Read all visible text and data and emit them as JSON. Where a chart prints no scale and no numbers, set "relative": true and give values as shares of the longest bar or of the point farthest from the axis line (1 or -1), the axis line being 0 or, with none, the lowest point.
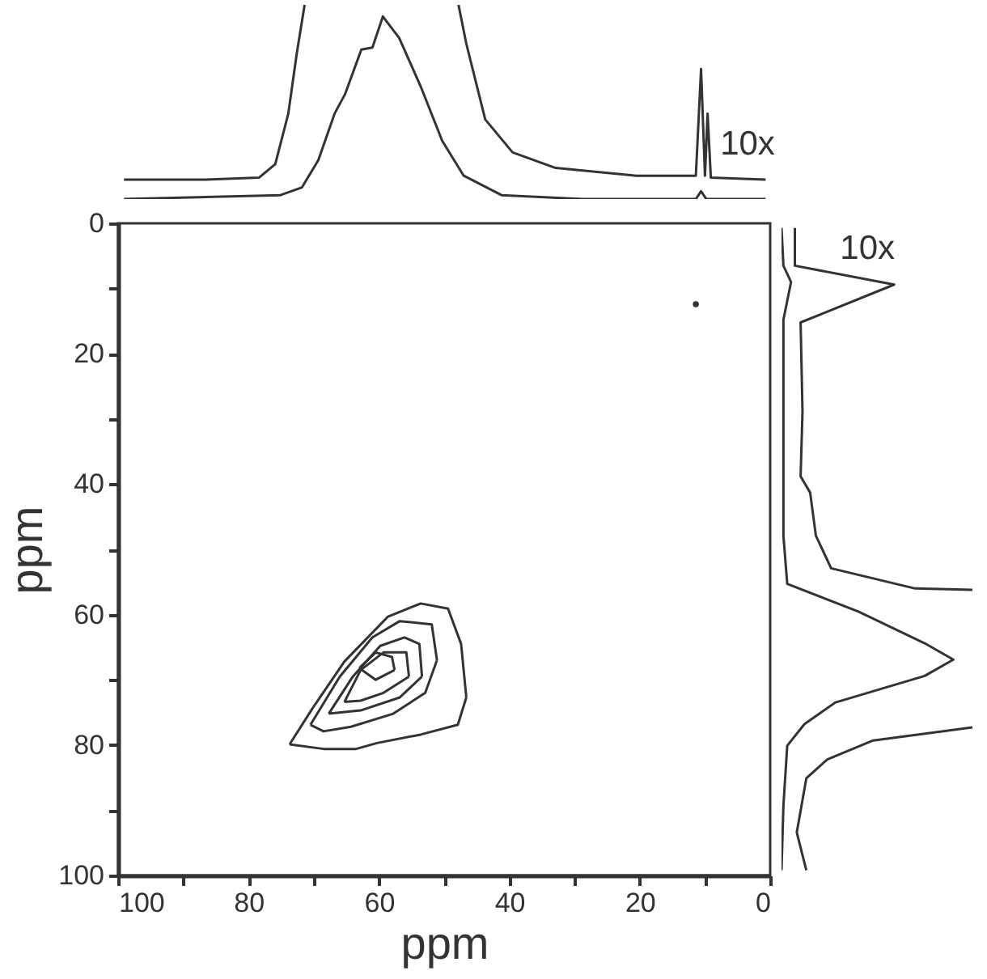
{
  "chart_data": [
    {
      "type": "line",
      "relative": true,
      "xlim": [
        100,
        0
      ],
      "tick_labels": false,
      "annotations": [
        "10x"
      ],
      "series": [
        {
          "color": "#333333",
          "x": [
            99.1,
            86.7,
            78.4,
            75.9,
            73.9,
            72.6,
            71.4,
            60,
            47.8,
            46.6,
            43.7,
            39.5,
            32.9,
            20.5,
            11.4,
            10.6,
            10.0,
            9.6,
            9.1,
            0.7
          ],
          "values": [
            0.1,
            0.1,
            0.11,
            0.18,
            0.44,
            0.75,
            1.0,
            null,
            1.0,
            0.8,
            0.41,
            0.24,
            0.16,
            0.12,
            0.12,
            0.67,
            0.12,
            0.44,
            0.11,
            0.1
          ]
        },
        {
          "color": "#333333",
          "x": [
            99.1,
            75.1,
            71.8,
            69.3,
            66.8,
            65.2,
            62.7,
            61.0,
            59.4,
            56.9,
            53.6,
            50.3,
            47.0,
            41.2,
            28.8,
            11.4,
            10.6,
            9.8,
            0.7
          ],
          "values": [
            0,
            0.02,
            0.06,
            0.2,
            0.44,
            0.54,
            0.77,
            0.78,
            0.94,
            0.83,
            0.58,
            0.3,
            0.12,
            0.02,
            0,
            0,
            0.04,
            0,
            0
          ]
        }
      ]
    },
    {
      "type": "line",
      "xlabel": "ppm",
      "ylabel": "ppm",
      "xlim": [
        100,
        0
      ],
      "ylim": [
        100,
        0
      ],
      "xticks": [
        100,
        {
          "value": 90,
          "label": null
        },
        80,
        {
          "value": 70,
          "label": null
        },
        60,
        {
          "value": 50,
          "label": null
        },
        40,
        {
          "value": 30,
          "label": null
        },
        20,
        {
          "value": 10,
          "label": null
        },
        0
      ],
      "yticks": [
        0,
        {
          "value": 10,
          "label": null
        },
        20,
        {
          "value": 30,
          "label": null
        },
        40,
        {
          "value": 50,
          "label": null
        },
        60,
        {
          "value": 70,
          "label": null
        },
        80,
        {
          "value": 90,
          "label": null
        },
        100
      ],
      "series": [
        {
          "color": "#333333",
          "x": [
            73.7,
            70.2,
            65.3,
            58.6,
            53.6,
            49.4,
            47.4,
            46.6,
            null,
            46.6,
            47.9,
            53.6,
            60.3,
            63.5,
            68.5,
            73.7
          ],
          "values": [
            79.9,
            74.4,
            67.2,
            60.3,
            58.3,
            59.1,
            64.5,
            72.7,
            null,
            72.7,
            76.9,
            78.4,
            79.7,
            80.6,
            80.6,
            79.9
          ]
        },
        {
          "color": "#333333",
          "x": [
            70.5,
            66,
            61,
            56.8,
            51.9,
            51.1,
            null,
            51.1,
            52.9,
            57.8,
            64.3,
            68.5,
            70.5
          ],
          "values": [
            76.9,
            69.5,
            63.5,
            61,
            61.5,
            67,
            null,
            67,
            72,
            75.2,
            77.2,
            77.9,
            76.9
          ]
        },
        {
          "color": "#333333",
          "x": [
            67.7,
            64,
            59.8,
            56.1,
            53.8,
            53.4,
            null,
            53.4,
            56.8,
            62.8,
            67.7
          ],
          "values": [
            75.2,
            69.5,
            64.8,
            63.5,
            64.5,
            69.5,
            null,
            69.5,
            72.7,
            74.7,
            75.2
          ]
        },
        {
          "color": "#333333",
          "x": [
            65.3,
            62.8,
            59.3,
            55.8,
            55.4,
            null,
            55.4,
            59.3,
            62.8,
            65.3
          ],
          "values": [
            73.4,
            68.5,
            65.8,
            65.8,
            69.5,
            null,
            69.5,
            72,
            73.2,
            73.4
          ]
        },
        {
          "color": "#333333",
          "x": [
            63,
            60.5,
            58.0,
            57.6,
            null,
            57.6,
            60.5,
            63
          ],
          "values": [
            68.2,
            65.8,
            66.5,
            68.5,
            null,
            68.5,
            70.0,
            68.2
          ]
        },
        {
          "color": "#333333",
          "type": "scatter",
          "marker": "circle",
          "x": [
            11.4
          ],
          "values": [
            12.4
          ]
        }
      ]
    },
    {
      "type": "line",
      "relative": true,
      "orientation": "horizontal",
      "ylim": [
        100,
        0
      ],
      "tick_labels": false,
      "annotations": [
        "10x"
      ],
      "series": [
        {
          "color": "#333333",
          "x": [
            0.7,
            6.5,
            9.4,
            15.2,
            28.9,
            38.8,
            41.3,
            47.9,
            52.9,
            56.0,
            56.2,
            66,
            77.3,
            79.3,
            82.2,
            85.1,
            93.4,
            99.2
          ],
          "values": [
            0.07,
            0.07,
            0.59,
            0.1,
            0.11,
            0.1,
            0.15,
            0.18,
            0.26,
            0.7,
            1.0,
            null,
            1.0,
            0.48,
            0.24,
            0.13,
            0.08,
            0.13
          ]
        },
        {
          "color": "#333333",
          "x": [
            0.7,
            6.5,
            9.0,
            14.8,
            47.9,
            55.3,
            59.5,
            64.4,
            66.9,
            69.4,
            73.5,
            76.8,
            80.1,
            89.3,
            99.2
          ],
          "values": [
            0,
            0.01,
            0.05,
            0.01,
            0.01,
            0.03,
            0.4,
            0.75,
            0.9,
            0.75,
            0.28,
            0.12,
            0.03,
            0.01,
            0
          ]
        }
      ]
    }
  ]
}
